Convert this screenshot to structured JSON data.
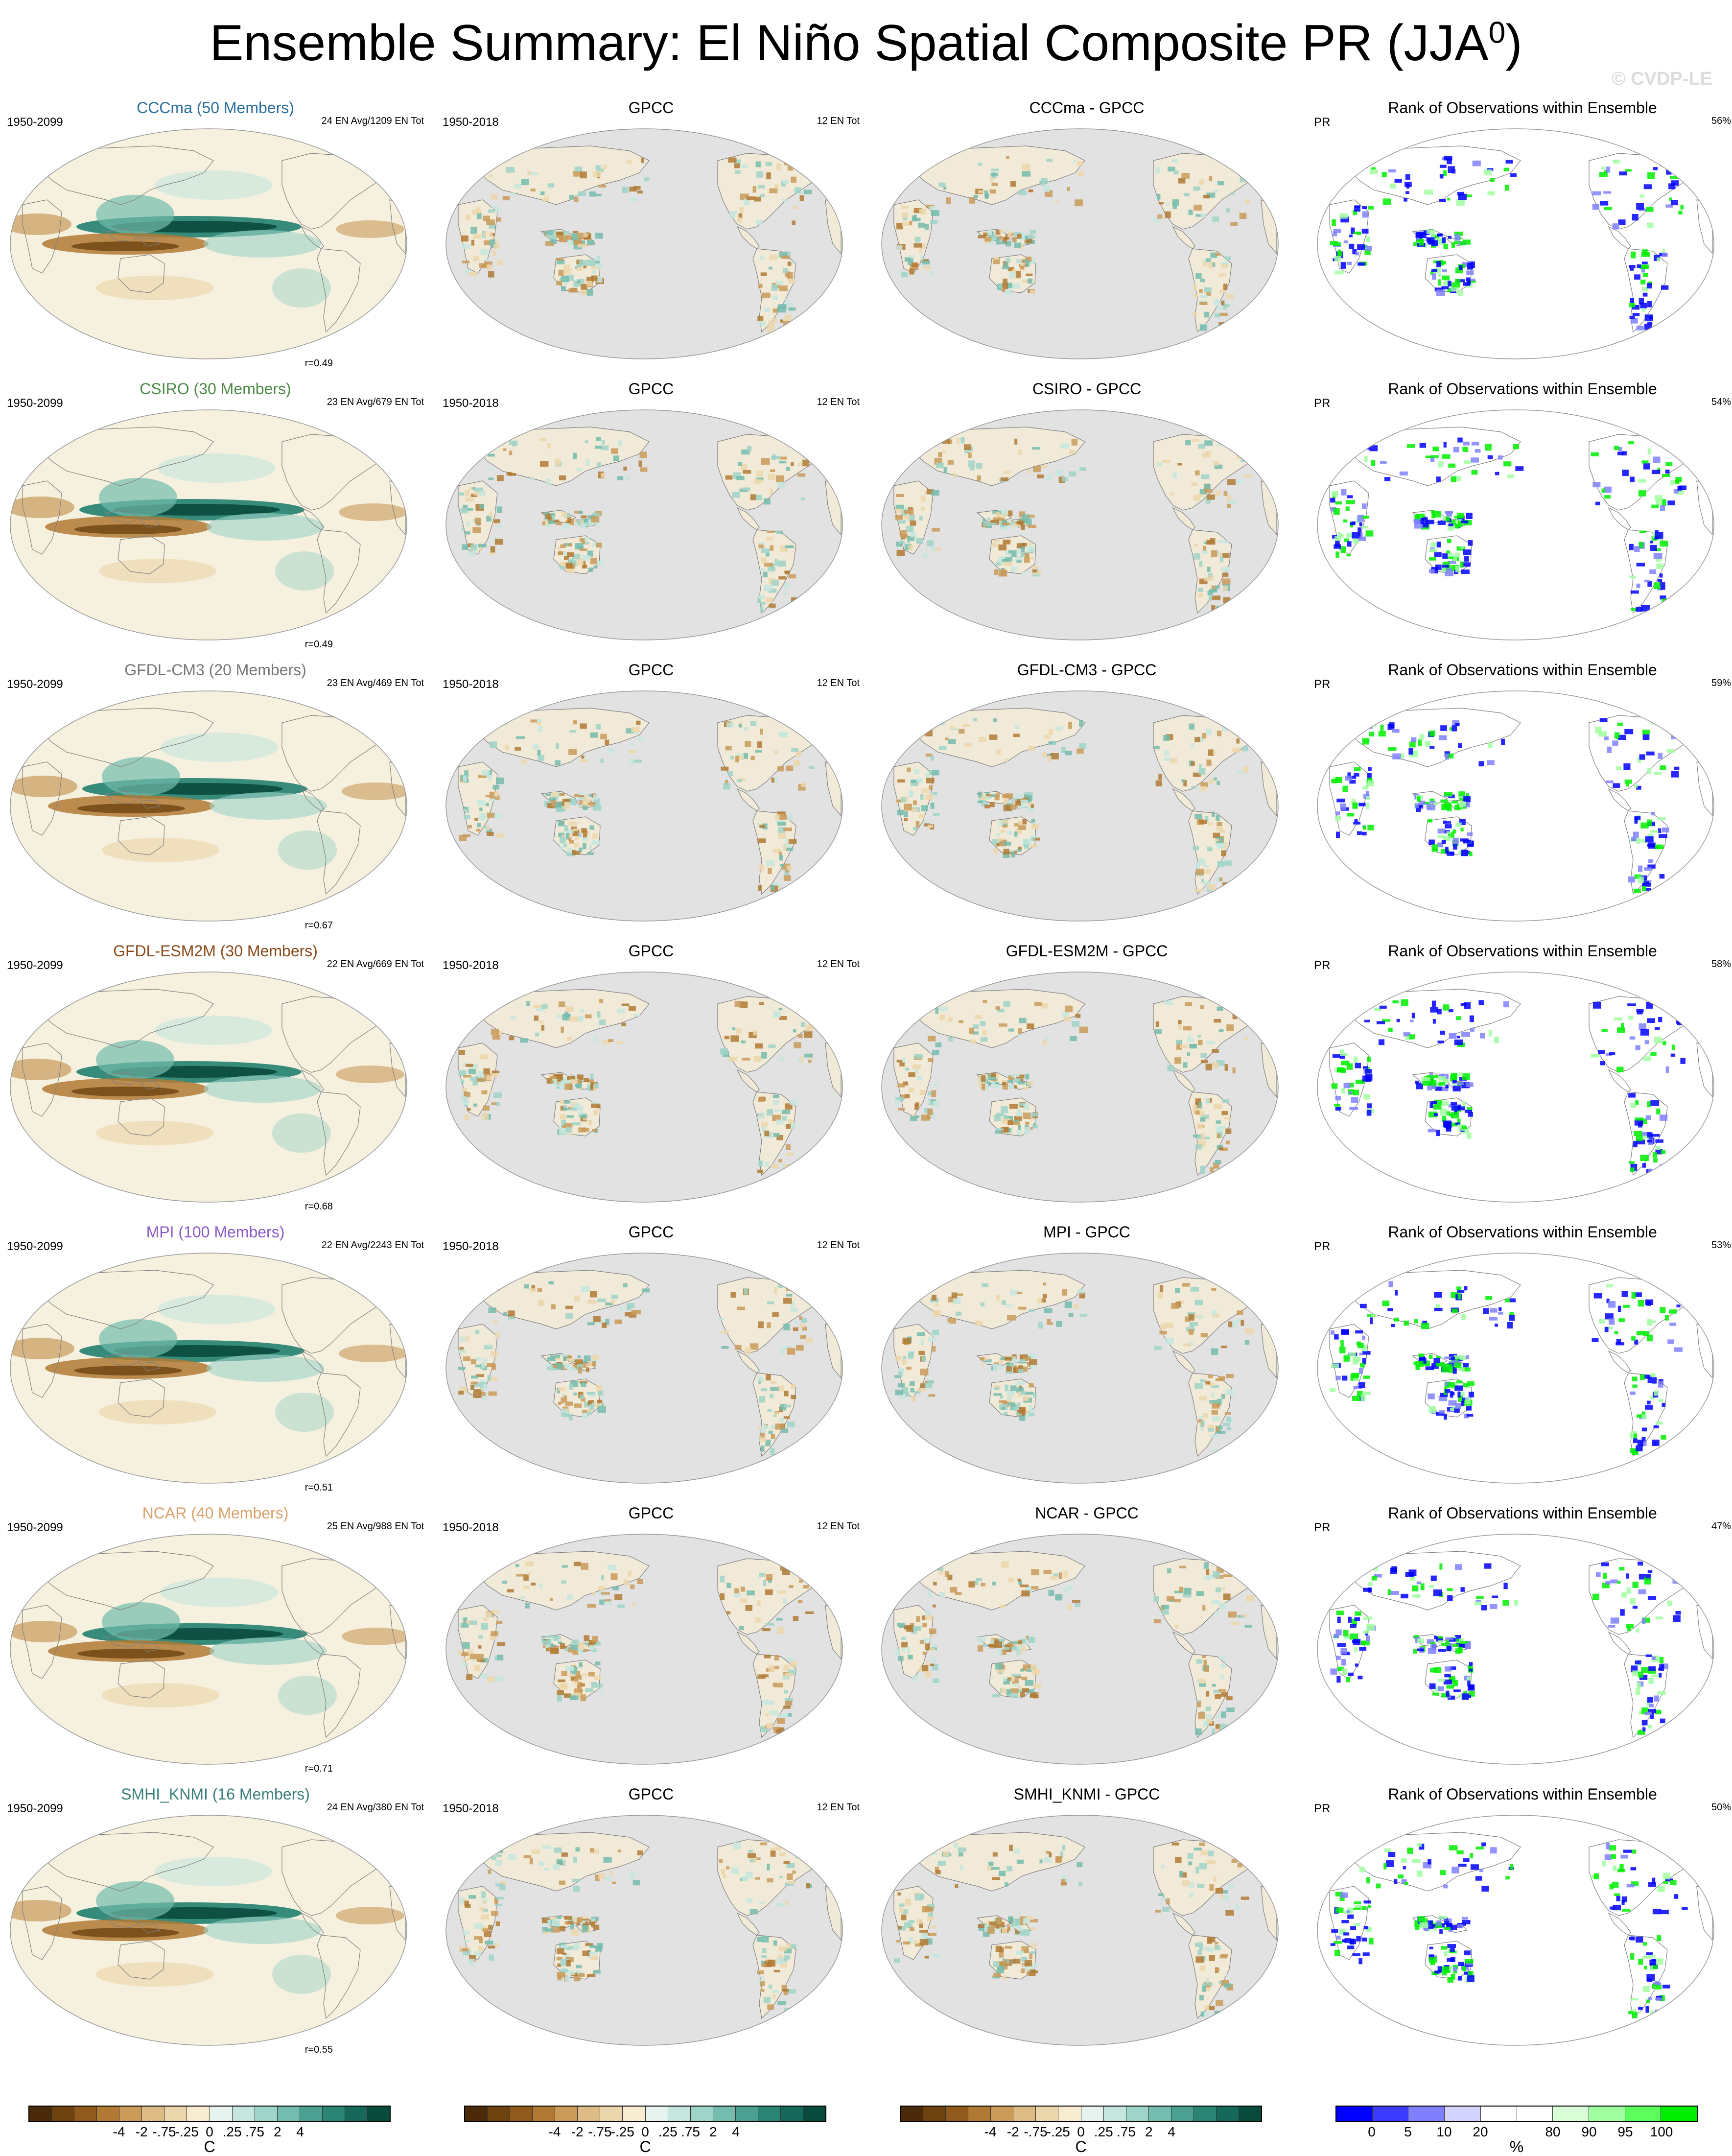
{
  "title": "Ensemble Summary: El Niño Spatial Composite PR (JJA",
  "title_sup": "0",
  "title_close": ")",
  "watermark": "© CVDP-LE",
  "rows": [
    {
      "model_title": "CCCma (50 Members)",
      "model_color": "#2b6f9c",
      "model_period": "1950-2099",
      "model_stats": "24 EN Avg/1209 EN Tot",
      "r": "r=0.49",
      "obs_title": "GPCC",
      "obs_period": "1950-2018",
      "obs_stats": "12 EN Tot",
      "diff_title": "CCCma - GPCC",
      "rank_title": "Rank of Observations within Ensemble",
      "rank_var": "PR",
      "rank_pct": "56%"
    },
    {
      "model_title": "CSIRO (30 Members)",
      "model_color": "#4e8a48",
      "model_period": "1950-2099",
      "model_stats": "23 EN Avg/679 EN Tot",
      "r": "r=0.49",
      "obs_title": "GPCC",
      "obs_period": "1950-2018",
      "obs_stats": "12 EN Tot",
      "diff_title": "CSIRO - GPCC",
      "rank_title": "Rank of Observations within Ensemble",
      "rank_var": "PR",
      "rank_pct": "54%"
    },
    {
      "model_title": "GFDL-CM3 (20 Members)",
      "model_color": "#777777",
      "model_period": "1950-2099",
      "model_stats": "23 EN Avg/469 EN Tot",
      "r": "r=0.67",
      "obs_title": "GPCC",
      "obs_period": "1950-2018",
      "obs_stats": "12 EN Tot",
      "diff_title": "GFDL-CM3 - GPCC",
      "rank_title": "Rank of Observations within Ensemble",
      "rank_var": "PR",
      "rank_pct": "59%"
    },
    {
      "model_title": "GFDL-ESM2M (30 Members)",
      "model_color": "#8a4a1a",
      "model_period": "1950-2099",
      "model_stats": "22 EN Avg/669 EN Tot",
      "r": "r=0.68",
      "obs_title": "GPCC",
      "obs_period": "1950-2018",
      "obs_stats": "12 EN Tot",
      "diff_title": "GFDL-ESM2M - GPCC",
      "rank_title": "Rank of Observations within Ensemble",
      "rank_var": "PR",
      "rank_pct": "58%"
    },
    {
      "model_title": "MPI (100 Members)",
      "model_color": "#8a5ac8",
      "model_period": "1950-2099",
      "model_stats": "22 EN Avg/2243 EN Tot",
      "r": "r=0.51",
      "obs_title": "GPCC",
      "obs_period": "1950-2018",
      "obs_stats": "12 EN Tot",
      "diff_title": "MPI - GPCC",
      "rank_title": "Rank of Observations within Ensemble",
      "rank_var": "PR",
      "rank_pct": "53%"
    },
    {
      "model_title": "NCAR (40 Members)",
      "model_color": "#d9a06a",
      "model_period": "1950-2099",
      "model_stats": "25 EN Avg/988 EN Tot",
      "r": "r=0.71",
      "obs_title": "GPCC",
      "obs_period": "1950-2018",
      "obs_stats": "12 EN Tot",
      "diff_title": "NCAR - GPCC",
      "rank_title": "Rank of Observations within Ensemble",
      "rank_var": "PR",
      "rank_pct": "47%"
    },
    {
      "model_title": "SMHI_KNMI (16 Members)",
      "model_color": "#3a7f7a",
      "model_period": "1950-2099",
      "model_stats": "24 EN Avg/380 EN Tot",
      "r": "r=0.55",
      "obs_title": "GPCC",
      "obs_period": "1950-2018",
      "obs_stats": "12 EN Tot",
      "diff_title": "SMHI_KNMI - GPCC",
      "rank_title": "Rank of Observations within Ensemble",
      "rank_var": "PR",
      "rank_pct": "50%"
    }
  ],
  "legend_div": {
    "colors": [
      "#4a2a08",
      "#6e420f",
      "#8f5a1c",
      "#b07a34",
      "#c99a58",
      "#dcbb84",
      "#ecd7ac",
      "#f7ecd2",
      "#e6f3ef",
      "#c5e6de",
      "#9fd4c8",
      "#74bcad",
      "#4aa192",
      "#2b8575",
      "#16695a",
      "#0a4a3c"
    ],
    "ticks": [
      "-4",
      "-2",
      "-.75",
      "-.25",
      "0",
      ".25",
      ".75",
      "2",
      "4"
    ],
    "unit": "C"
  },
  "legend_rank": {
    "colors": [
      "#0000ff",
      "#3c3cff",
      "#8080ff",
      "#d4d4ff",
      "#ffffff",
      "#ffffff",
      "#d8ffd8",
      "#a0ffa0",
      "#5cff5c",
      "#00ee00"
    ],
    "ticks": [
      "0",
      "5",
      "10",
      "20",
      "80",
      "90",
      "95",
      "100"
    ],
    "unit": "%"
  },
  "colors": {
    "ocean_gray": "#e2e2e2",
    "land_gray": "#dcdcdc",
    "coast": "#808080"
  }
}
